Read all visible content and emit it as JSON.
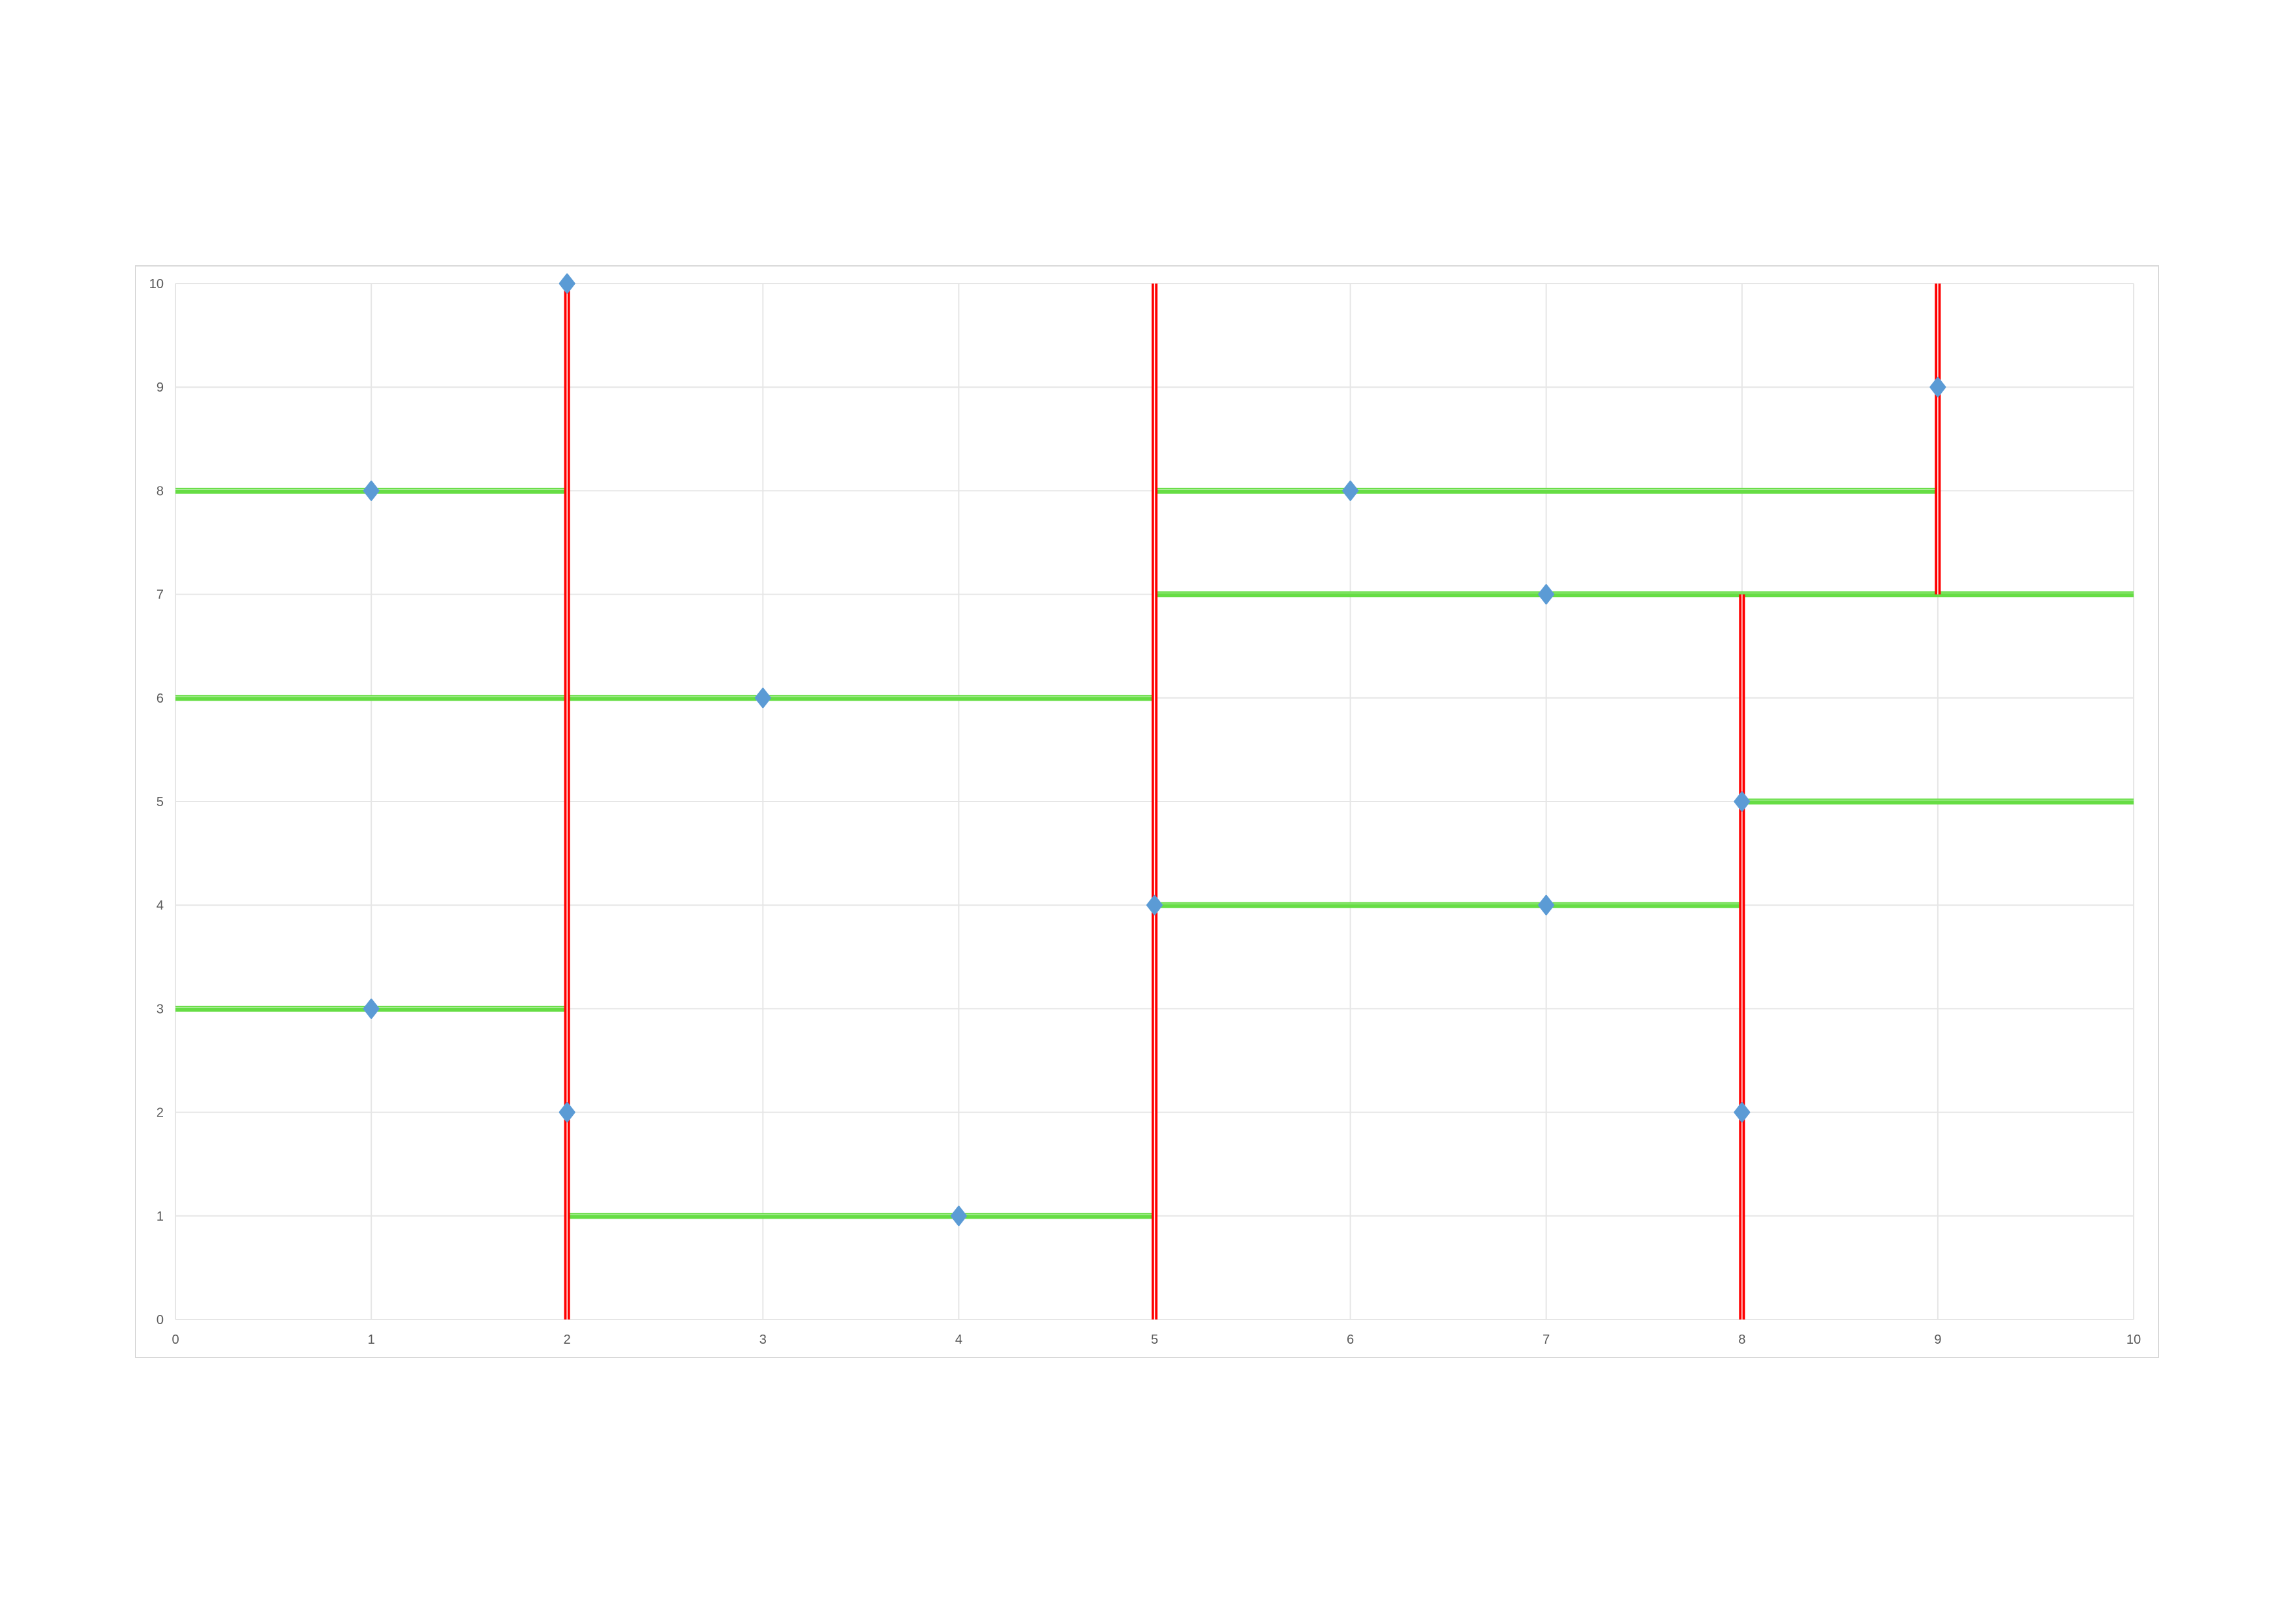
{
  "chart_data": {
    "type": "scatter",
    "title": "",
    "xlabel": "",
    "ylabel": "",
    "xlim": [
      0,
      10
    ],
    "ylim": [
      0,
      10
    ],
    "x_ticks": [
      "0",
      "1",
      "2",
      "3",
      "4",
      "5",
      "6",
      "7",
      "8",
      "9",
      "10"
    ],
    "y_ticks": [
      "0",
      "1",
      "2",
      "3",
      "4",
      "5",
      "6",
      "7",
      "8",
      "9",
      "10"
    ],
    "grid": true,
    "legend": "none",
    "colors": {
      "points": "#5B9BD5",
      "vertical_splits": "#FF0000",
      "horizontal_splits": "#66DD44",
      "grid": "#E6E6E6"
    },
    "points": [
      {
        "x": 2,
        "y": 10
      },
      {
        "x": 1,
        "y": 8
      },
      {
        "x": 9,
        "y": 9
      },
      {
        "x": 6,
        "y": 8
      },
      {
        "x": 7,
        "y": 7
      },
      {
        "x": 3,
        "y": 6
      },
      {
        "x": 8,
        "y": 5
      },
      {
        "x": 5,
        "y": 4
      },
      {
        "x": 7,
        "y": 4
      },
      {
        "x": 1,
        "y": 3
      },
      {
        "x": 2,
        "y": 2
      },
      {
        "x": 8,
        "y": 2
      },
      {
        "x": 4,
        "y": 1
      }
    ],
    "vertical_splits": [
      {
        "x": 2,
        "y_from": 0,
        "y_to": 10
      },
      {
        "x": 5,
        "y_from": 0,
        "y_to": 10
      },
      {
        "x": 9,
        "y_from": 7,
        "y_to": 10
      },
      {
        "x": 8,
        "y_from": 0,
        "y_to": 7
      }
    ],
    "horizontal_splits": [
      {
        "y": 8,
        "x_from": 0,
        "x_to": 2
      },
      {
        "y": 6,
        "x_from": 0,
        "x_to": 5
      },
      {
        "y": 3,
        "x_from": 0,
        "x_to": 2
      },
      {
        "y": 1,
        "x_from": 2,
        "x_to": 5
      },
      {
        "y": 8,
        "x_from": 5,
        "x_to": 9
      },
      {
        "y": 7,
        "x_from": 5,
        "x_to": 10
      },
      {
        "y": 4,
        "x_from": 5,
        "x_to": 8
      },
      {
        "y": 5,
        "x_from": 8,
        "x_to": 10
      }
    ]
  }
}
